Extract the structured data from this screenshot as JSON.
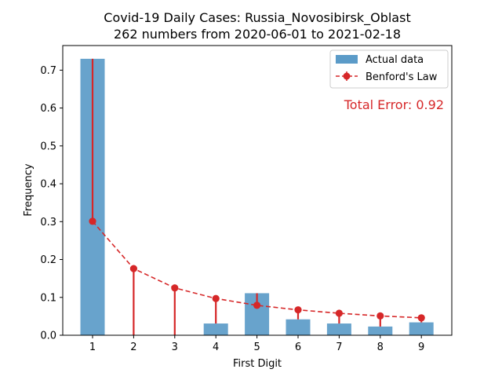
{
  "chart_data": {
    "type": "bar",
    "title": "Covid-19 Daily Cases: Russia_Novosibirsk_Oblast",
    "subtitle": "262 numbers from 2020-06-01 to 2021-02-18",
    "xlabel": "First Digit",
    "ylabel": "Frequency",
    "categories": [
      "1",
      "2",
      "3",
      "4",
      "5",
      "6",
      "7",
      "8",
      "9"
    ],
    "series": [
      {
        "name": "Actual data",
        "kind": "bar",
        "color": "#5b9bc8",
        "values": [
          0.73,
          0.0,
          0.0,
          0.031,
          0.111,
          0.042,
          0.031,
          0.023,
          0.034
        ]
      },
      {
        "name": "Benford's Law",
        "kind": "line-dashed-markers",
        "color": "#d62728",
        "values": [
          0.301,
          0.176,
          0.125,
          0.097,
          0.079,
          0.067,
          0.058,
          0.051,
          0.046
        ]
      }
    ],
    "annotation": "Total Error: 0.92",
    "annotation_color": "#d62728",
    "ylim": [
      0,
      0.765
    ],
    "yticks": [
      "0.0",
      "0.1",
      "0.2",
      "0.3",
      "0.4",
      "0.5",
      "0.6",
      "0.7"
    ],
    "legend_position": "top-right",
    "grid": false
  }
}
